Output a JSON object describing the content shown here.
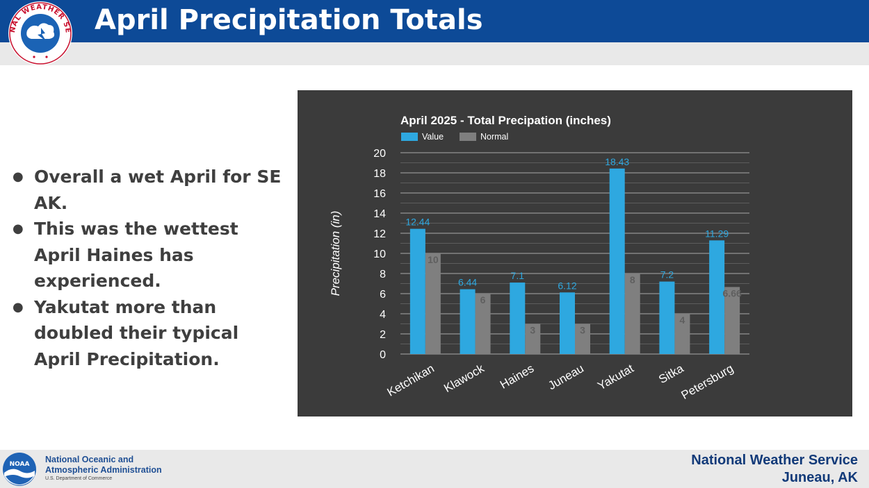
{
  "header": {
    "title": "April Precipitation Totals",
    "logo_text": "NATIONAL WEATHER SERVICE"
  },
  "bullets": [
    "Overall a wet April for SE AK.",
    "This was the wettest April Haines has experienced.",
    "Yakutat more than doubled their typical April Precipitation."
  ],
  "footer": {
    "noaa_line1": "National Oceanic and",
    "noaa_line2": "Atmospheric Administration",
    "noaa_line3": "U.S. Department of Commerce",
    "noaa_logo_text": "NOAA",
    "nws_line1": "National Weather Service",
    "nws_line2": "Juneau, AK"
  },
  "colors": {
    "header_blue": "#0d4a97",
    "value_bar": "#2ea8e0",
    "normal_bar": "#7f7f7f",
    "chart_bg": "#3b3b3b"
  },
  "chart_data": {
    "type": "bar",
    "title": "April 2025 - Total Precipation (inches)",
    "ylabel": "Precipitation (in)",
    "xlabel": "",
    "categories": [
      "Ketchikan",
      "Klawock",
      "Haines",
      "Juneau",
      "Yakutat",
      "Sitka",
      "Petersburg"
    ],
    "series": [
      {
        "name": "Value",
        "values": [
          12.44,
          6.44,
          7.1,
          6.12,
          18.43,
          7.2,
          11.29
        ],
        "labels": [
          "12.44",
          "6.44",
          "7.1",
          "6.12",
          "18.43",
          "7.2",
          "11.29"
        ]
      },
      {
        "name": "Normal",
        "values": [
          10,
          6,
          3,
          3,
          8,
          4,
          6.66
        ],
        "labels": [
          "10",
          "6",
          "3",
          "3",
          "8",
          "4",
          "6.66"
        ]
      }
    ],
    "ylim": [
      0,
      20
    ],
    "yticks": [
      "0",
      "2",
      "4",
      "6",
      "8",
      "10",
      "12",
      "14",
      "16",
      "18",
      "20"
    ],
    "grid": true,
    "legend": "top-left"
  }
}
